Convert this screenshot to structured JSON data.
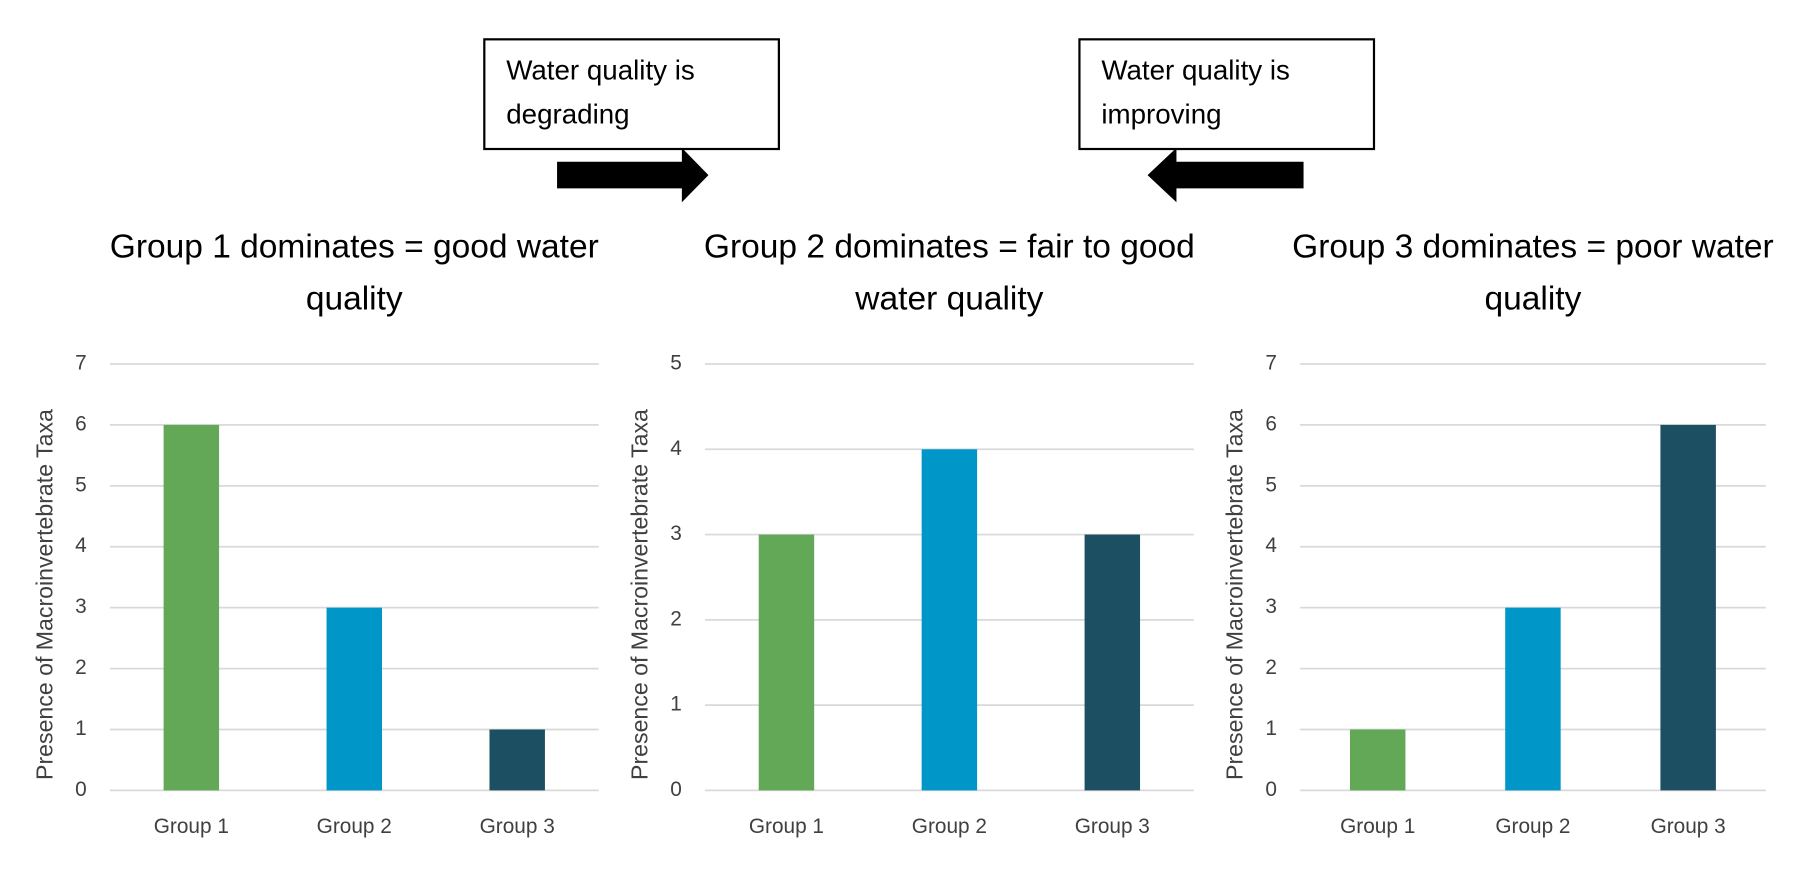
{
  "annotations": [
    "Water quality is degrading",
    "Water quality is improving"
  ],
  "chart_data": [
    {
      "type": "bar",
      "title": "Group 1 dominates = good water quality",
      "y_label": "Presence of Macroinvertebrate Taxa",
      "categories": [
        "Group 1",
        "Group 2",
        "Group 3"
      ],
      "values": [
        6,
        3,
        1
      ],
      "colors": [
        "#62a856",
        "#0096c8",
        "#1d4f62"
      ],
      "ylim": [
        0,
        7
      ],
      "yticks": [
        0,
        1,
        2,
        3,
        4,
        5,
        6,
        7
      ],
      "grid": true
    },
    {
      "type": "bar",
      "title": "Group 2 dominates = fair to good water quality",
      "y_label": "Presence of Macroinvertebrate Taxa",
      "categories": [
        "Group 1",
        "Group 2",
        "Group 3"
      ],
      "values": [
        3,
        4,
        3
      ],
      "colors": [
        "#62a856",
        "#0096c8",
        "#1d4f62"
      ],
      "ylim": [
        0,
        5
      ],
      "yticks": [
        0,
        1,
        2,
        3,
        4,
        5
      ],
      "grid": true
    },
    {
      "type": "bar",
      "title": "Group 3 dominates = poor water quality",
      "y_label": "Presence of Macroinvertebrate Taxa",
      "categories": [
        "Group 1",
        "Group 2",
        "Group 3"
      ],
      "values": [
        1,
        3,
        6
      ],
      "colors": [
        "#62a856",
        "#0096c8",
        "#1d4f62"
      ],
      "ylim": [
        0,
        7
      ],
      "yticks": [
        0,
        1,
        2,
        3,
        4,
        5,
        6,
        7
      ],
      "grid": true
    }
  ]
}
